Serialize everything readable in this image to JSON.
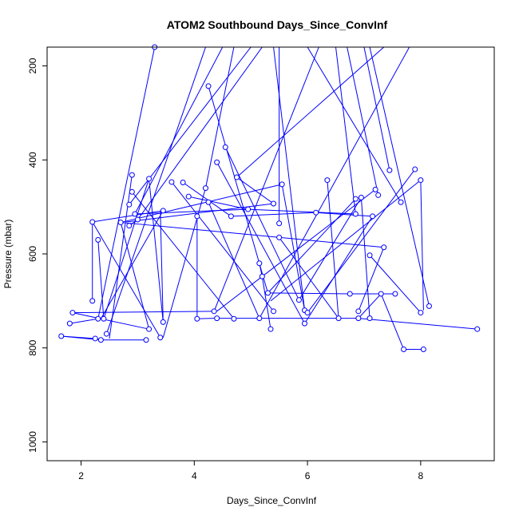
{
  "chart_data": {
    "type": "line",
    "title": "ATOM2 Southbound Days_Since_ConvInf",
    "xlabel": "Days_Since_ConvInf",
    "ylabel": "Pressure (mbar)",
    "xlim": [
      1.4,
      9.3
    ],
    "ylim": [
      1040,
      160
    ],
    "y_reversed": true,
    "grid": false,
    "x_ticks": [
      2,
      4,
      6,
      8
    ],
    "x_tick_labels": [
      "2",
      "4",
      "6",
      "8"
    ],
    "y_ticks": [
      200,
      400,
      600,
      800,
      1000
    ],
    "y_tick_labels": [
      "200",
      "400",
      "600",
      "800",
      "1000"
    ],
    "series_color": "#0000ff",
    "points": [
      {
        "x": 1.65,
        "y": 775
      },
      {
        "x": 2.25,
        "y": 780
      },
      {
        "x": 2.35,
        "y": 783
      },
      {
        "x": 3.15,
        "y": 783
      },
      {
        "x": 1.8,
        "y": 748
      },
      {
        "x": 2.3,
        "y": 738
      },
      {
        "x": 3.3,
        "y": 160
      },
      {
        "x": 3.2,
        "y": 760
      },
      {
        "x": 1.85,
        "y": 725
      },
      {
        "x": 3.4,
        "y": 778
      },
      {
        "x": 2.2,
        "y": 700
      },
      {
        "x": 2.2,
        "y": 532
      },
      {
        "x": 2.3,
        "y": 570
      },
      {
        "x": 2.4,
        "y": 738
      },
      {
        "x": 2.45,
        "y": 770
      },
      {
        "x": 2.7,
        "y": 533
      },
      {
        "x": 2.85,
        "y": 495
      },
      {
        "x": 2.85,
        "y": 540
      },
      {
        "x": 2.9,
        "y": 432
      },
      {
        "x": 2.9,
        "y": 468
      },
      {
        "x": 2.95,
        "y": 515
      },
      {
        "x": 3.0,
        "y": 527
      },
      {
        "x": 3.2,
        "y": 440
      },
      {
        "x": 3.45,
        "y": 508
      },
      {
        "x": 3.45,
        "y": 745
      },
      {
        "x": 3.6,
        "y": 447
      },
      {
        "x": 3.8,
        "y": 448
      },
      {
        "x": 3.9,
        "y": 478
      },
      {
        "x": 4.05,
        "y": 520
      },
      {
        "x": 4.05,
        "y": 738
      },
      {
        "x": 4.2,
        "y": 460
      },
      {
        "x": 4.25,
        "y": 243
      },
      {
        "x": 4.4,
        "y": 405
      },
      {
        "x": 4.55,
        "y": 373
      },
      {
        "x": 4.25,
        "y": 490
      },
      {
        "x": 4.35,
        "y": 722
      },
      {
        "x": 4.4,
        "y": 737
      },
      {
        "x": 4.65,
        "y": 520
      },
      {
        "x": 4.75,
        "y": 437
      },
      {
        "x": 4.7,
        "y": 738
      },
      {
        "x": 4.95,
        "y": 505
      },
      {
        "x": 5.15,
        "y": 620
      },
      {
        "x": 5.2,
        "y": 648
      },
      {
        "x": 5.15,
        "y": 737
      },
      {
        "x": 5.3,
        "y": 683
      },
      {
        "x": 5.35,
        "y": 760
      },
      {
        "x": 5.4,
        "y": 493
      },
      {
        "x": 5.4,
        "y": 722
      },
      {
        "x": 5.5,
        "y": 535
      },
      {
        "x": 5.5,
        "y": 565
      },
      {
        "x": 5.55,
        "y": 452
      },
      {
        "x": 5.85,
        "y": 698
      },
      {
        "x": 5.95,
        "y": 720
      },
      {
        "x": 5.95,
        "y": 748
      },
      {
        "x": 6.0,
        "y": 725
      },
      {
        "x": 6.15,
        "y": 512
      },
      {
        "x": 6.35,
        "y": 443
      },
      {
        "x": 6.55,
        "y": 737
      },
      {
        "x": 6.75,
        "y": 685
      },
      {
        "x": 6.85,
        "y": 515
      },
      {
        "x": 6.9,
        "y": 737
      },
      {
        "x": 6.9,
        "y": 722
      },
      {
        "x": 6.85,
        "y": 483
      },
      {
        "x": 6.95,
        "y": 480
      },
      {
        "x": 7.1,
        "y": 737
      },
      {
        "x": 7.1,
        "y": 603
      },
      {
        "x": 7.15,
        "y": 520
      },
      {
        "x": 7.2,
        "y": 463
      },
      {
        "x": 7.25,
        "y": 475
      },
      {
        "x": 7.3,
        "y": 685
      },
      {
        "x": 7.35,
        "y": 586
      },
      {
        "x": 7.45,
        "y": 422
      },
      {
        "x": 7.55,
        "y": 685
      },
      {
        "x": 7.65,
        "y": 490
      },
      {
        "x": 7.7,
        "y": 803
      },
      {
        "x": 7.9,
        "y": 420
      },
      {
        "x": 8.0,
        "y": 443
      },
      {
        "x": 8.0,
        "y": 725
      },
      {
        "x": 8.05,
        "y": 803
      },
      {
        "x": 8.15,
        "y": 711
      },
      {
        "x": 9.0,
        "y": 760
      }
    ],
    "segments": [
      [
        1.65,
        775,
        2.25,
        780
      ],
      [
        2.25,
        780,
        2.35,
        783
      ],
      [
        2.35,
        783,
        3.15,
        783
      ],
      [
        1.65,
        775,
        2.35,
        783
      ],
      [
        1.8,
        748,
        2.3,
        738
      ],
      [
        2.3,
        738,
        3.3,
        160
      ],
      [
        1.85,
        725,
        3.2,
        760
      ],
      [
        3.2,
        760,
        2.7,
        533
      ],
      [
        2.2,
        700,
        2.2,
        532
      ],
      [
        2.2,
        532,
        3.4,
        778
      ],
      [
        2.3,
        570,
        2.4,
        738
      ],
      [
        2.4,
        738,
        3.2,
        440
      ],
      [
        2.45,
        770,
        4.2,
        160
      ],
      [
        2.7,
        533,
        5.55,
        452
      ],
      [
        2.85,
        495,
        5.0,
        160
      ],
      [
        2.85,
        540,
        3.0,
        527
      ],
      [
        2.9,
        432,
        2.5,
        780
      ],
      [
        2.9,
        468,
        4.7,
        738
      ],
      [
        2.95,
        515,
        4.5,
        160
      ],
      [
        3.0,
        527,
        5.2,
        160
      ],
      [
        3.2,
        440,
        3.45,
        745
      ],
      [
        3.45,
        508,
        2.35,
        738
      ],
      [
        3.45,
        508,
        2.2,
        532
      ],
      [
        3.6,
        447,
        5.4,
        722
      ],
      [
        3.8,
        448,
        4.65,
        520
      ],
      [
        3.9,
        478,
        4.95,
        505
      ],
      [
        4.05,
        520,
        4.05,
        738
      ],
      [
        4.05,
        738,
        4.35,
        737
      ],
      [
        4.2,
        460,
        3.45,
        778
      ],
      [
        4.25,
        243,
        5.3,
        683
      ],
      [
        4.4,
        405,
        5.95,
        748
      ],
      [
        4.55,
        373,
        5.85,
        698
      ],
      [
        4.25,
        490,
        5.15,
        737
      ],
      [
        4.35,
        722,
        6.2,
        160
      ],
      [
        4.4,
        737,
        6.9,
        737
      ],
      [
        4.65,
        520,
        6.15,
        512
      ],
      [
        4.75,
        437,
        5.4,
        493
      ],
      [
        4.95,
        505,
        6.85,
        515
      ],
      [
        5.15,
        620,
        5.2,
        648
      ],
      [
        5.2,
        648,
        5.35,
        760
      ],
      [
        5.3,
        683,
        6.75,
        685
      ],
      [
        5.4,
        493,
        2.8,
        532
      ],
      [
        5.5,
        535,
        5.5,
        160
      ],
      [
        5.5,
        565,
        6.55,
        737
      ],
      [
        5.55,
        452,
        5.95,
        720
      ],
      [
        5.85,
        698,
        6.95,
        480
      ],
      [
        6.0,
        725,
        7.9,
        420
      ],
      [
        6.15,
        512,
        7.15,
        520
      ],
      [
        6.35,
        443,
        6.55,
        737
      ],
      [
        6.75,
        685,
        7.55,
        685
      ],
      [
        6.85,
        515,
        6.5,
        160
      ],
      [
        6.85,
        483,
        5.3,
        683
      ],
      [
        6.95,
        480,
        7.1,
        737
      ],
      [
        7.1,
        603,
        8.0,
        725
      ],
      [
        7.15,
        520,
        5.95,
        748
      ],
      [
        7.2,
        463,
        4.4,
        722
      ],
      [
        7.25,
        475,
        6.7,
        160
      ],
      [
        7.35,
        586,
        6.9,
        722
      ],
      [
        7.45,
        422,
        7.0,
        160
      ],
      [
        7.65,
        490,
        6.0,
        160
      ],
      [
        7.7,
        803,
        8.05,
        803
      ],
      [
        8.0,
        443,
        8.05,
        720
      ],
      [
        8.15,
        711,
        7.1,
        160
      ],
      [
        9.0,
        760,
        6.9,
        737
      ],
      [
        5.15,
        737,
        7.8,
        160
      ],
      [
        2.7,
        533,
        7.35,
        586
      ],
      [
        7.3,
        685,
        7.7,
        803
      ],
      [
        4.75,
        437,
        7.35,
        160
      ],
      [
        5.35,
        700,
        8.0,
        443
      ],
      [
        1.85,
        725,
        4.35,
        722
      ],
      [
        3.45,
        745,
        3.4,
        508
      ],
      [
        4.2,
        460,
        4.7,
        160
      ],
      [
        5.95,
        720,
        5.4,
        160
      ],
      [
        4.95,
        505,
        2.95,
        515
      ],
      [
        6.9,
        737,
        7.3,
        685
      ]
    ]
  }
}
